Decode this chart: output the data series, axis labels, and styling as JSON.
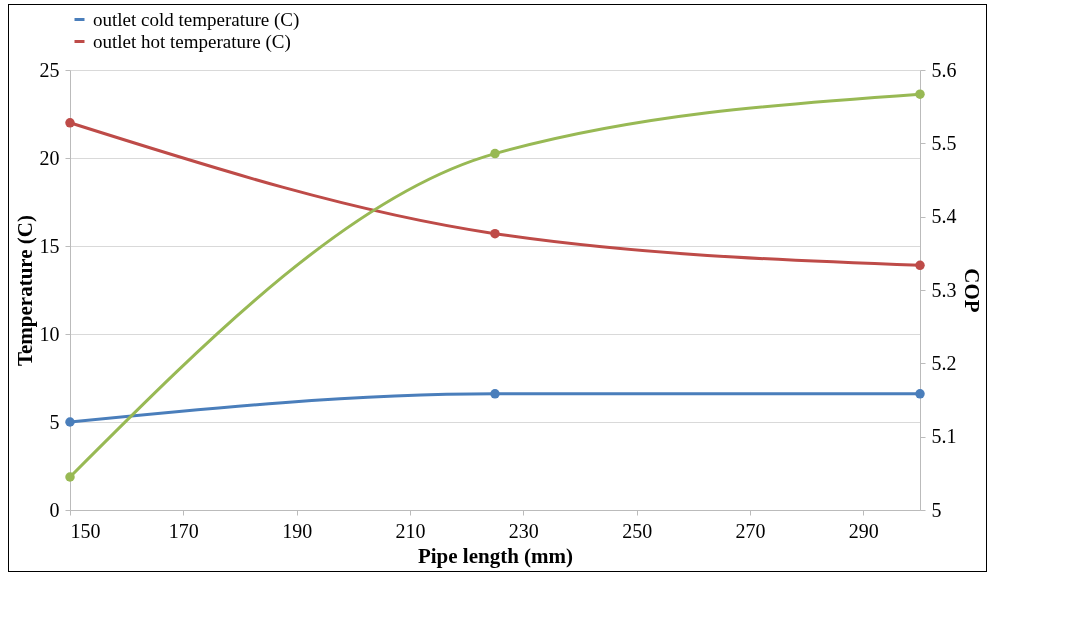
{
  "chart_data": {
    "type": "line",
    "xlabel": "Pipe length (mm)",
    "ylabel": "Temperature (C)",
    "y2label": "COP",
    "x": [
      150,
      225,
      300
    ],
    "series": [
      {
        "name": "outlet cold temperature (C)",
        "color": "#4a7ebb",
        "values": [
          5.0,
          6.6,
          6.6
        ]
      },
      {
        "name": "outlet hot temperature (C)",
        "color": "#be4b48",
        "values": [
          22.0,
          15.7,
          13.9
        ]
      },
      {
        "color": "#98b954",
        "values": [
          5.045,
          5.486,
          5.567
        ],
        "axis": "y2"
      }
    ],
    "xlim": [
      150,
      300
    ],
    "xticks": [
      150,
      170,
      190,
      210,
      230,
      250,
      270,
      290
    ],
    "ylim": [
      0,
      25
    ],
    "yticks": [
      0,
      5,
      10,
      15,
      20,
      25
    ],
    "y2lim": [
      5,
      5.6
    ],
    "y2ticks": [
      5,
      5.1,
      5.2,
      5.3,
      5.4,
      5.5,
      5.6
    ],
    "grid": "y",
    "legend": "top",
    "marker": "circle",
    "line_style": "solid"
  }
}
